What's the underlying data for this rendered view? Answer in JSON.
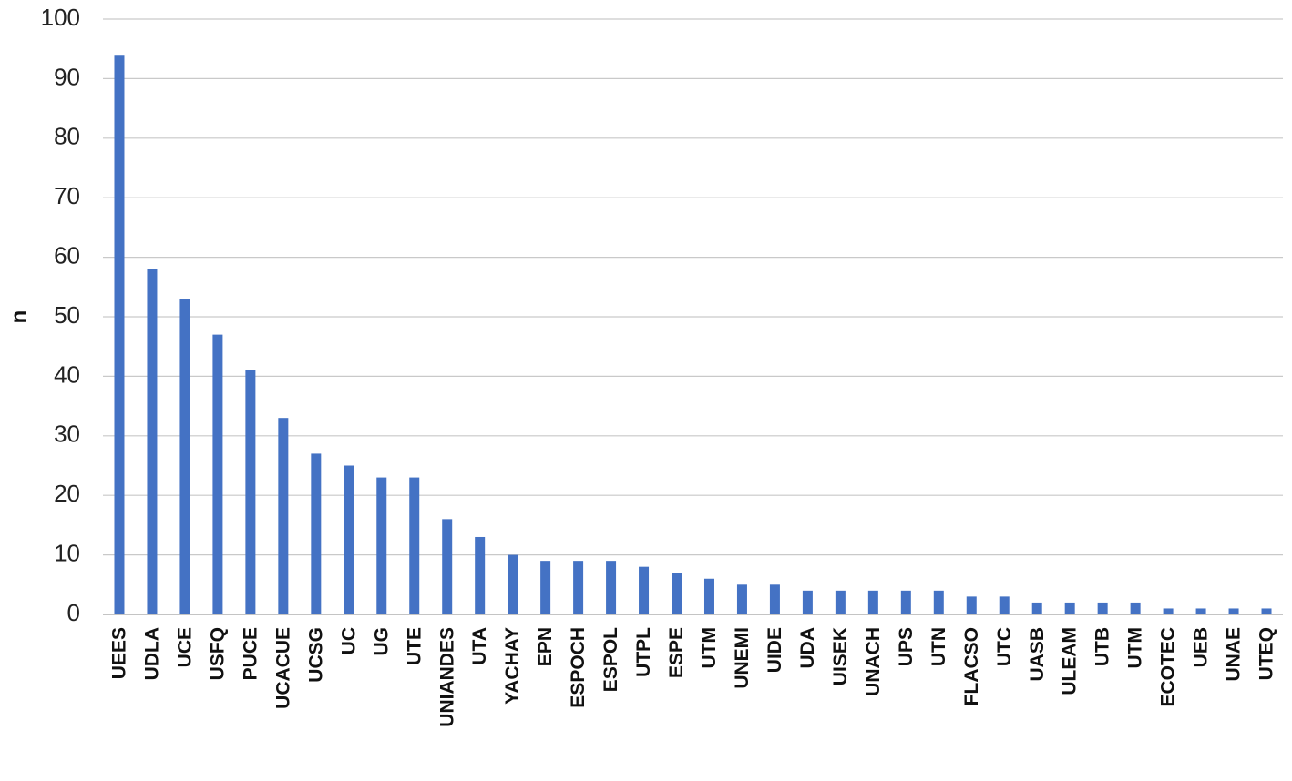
{
  "chart_data": {
    "type": "bar",
    "xlabel": "",
    "ylabel": "n",
    "ylim": [
      0,
      100
    ],
    "yticks": [
      0,
      10,
      20,
      30,
      40,
      50,
      60,
      70,
      80,
      90,
      100
    ],
    "grid": true,
    "bar_color": "#4472C4",
    "categories": [
      "UEES",
      "UDLA",
      "UCE",
      "USFQ",
      "PUCE",
      "UCACUE",
      "UCSG",
      "UC",
      "UG",
      "UTE",
      "UNIANDES",
      "UTA",
      "YACHAY",
      "EPN",
      "ESPOCH",
      "ESPOL",
      "UTPL",
      "ESPE",
      "UTM",
      "UNEMI",
      "UIDE",
      "UDA",
      "UISEK",
      "UNACH",
      "UPS",
      "UTN",
      "FLACSO",
      "UTC",
      "UASB",
      "ULEAM",
      "UTB",
      "UTM",
      "ECOTEC",
      "UEB",
      "UNAE",
      "UTEQ"
    ],
    "values": [
      94,
      58,
      53,
      47,
      41,
      33,
      27,
      25,
      23,
      23,
      16,
      13,
      10,
      9,
      9,
      9,
      8,
      7,
      6,
      5,
      5,
      4,
      4,
      4,
      4,
      4,
      3,
      3,
      2,
      2,
      2,
      2,
      1,
      1,
      1,
      1
    ]
  }
}
